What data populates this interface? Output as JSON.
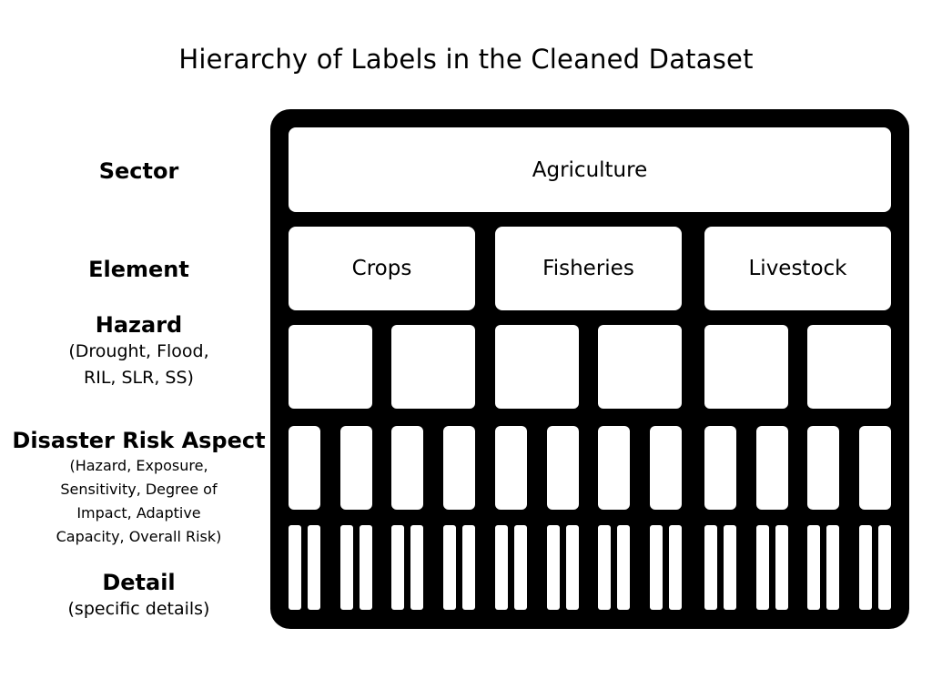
{
  "title": "Hierarchy of Labels in the Cleaned Dataset",
  "levels": {
    "sector": {
      "name": "Sector"
    },
    "element": {
      "name": "Element"
    },
    "hazard": {
      "name": "Hazard",
      "desc_line1": "(Drought, Flood,",
      "desc_line2": "RIL, SLR, SS)"
    },
    "aspect": {
      "name": "Disaster Risk Aspect",
      "desc_line1": "(Hazard, Exposure,",
      "desc_line2": "Sensitivity, Degree of",
      "desc_line3": "Impact, Adaptive",
      "desc_line4": "Capacity, Overall Risk)"
    },
    "detail": {
      "name": "Detail",
      "desc_line1": "(specific details)"
    }
  },
  "sector_box": "Agriculture",
  "element_boxes": [
    "Crops",
    "Fisheries",
    "Livestock"
  ]
}
